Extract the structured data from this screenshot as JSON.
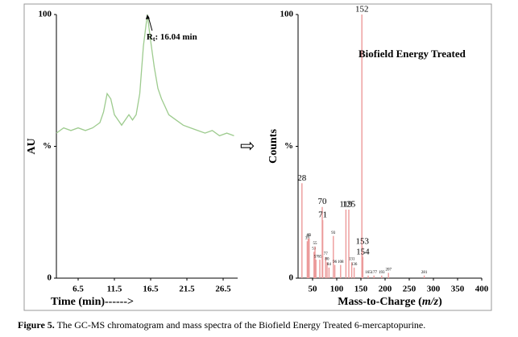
{
  "chart_data": [
    {
      "type": "line",
      "ylabel": "AU",
      "xlabel": "Time (min)------>",
      "color": "#9dcb8e",
      "annotation": [
        "R",
        "t",
        ": 16.04 min"
      ],
      "xlim": [
        3.5,
        28.5
      ],
      "xticks": [
        6.5,
        11.5,
        16.5,
        21.5,
        26.5
      ],
      "ylim": [
        0,
        100
      ],
      "yticks": [
        0,
        {
          "value": 50,
          "label": "%"
        },
        100
      ],
      "x": [
        3.5,
        4.5,
        5.5,
        6.5,
        7.5,
        8.5,
        9.5,
        10.0,
        10.5,
        11.0,
        11.5,
        12.0,
        12.5,
        13.0,
        13.5,
        14.0,
        14.5,
        15.0,
        15.5,
        16.04,
        16.5,
        17.0,
        17.5,
        18.0,
        18.5,
        19.0,
        20.0,
        21.0,
        22.0,
        23.0,
        24.0,
        25.0,
        26.0,
        27.0,
        28.0
      ],
      "values": [
        55,
        57,
        56,
        57,
        56,
        57,
        59,
        63,
        70,
        68,
        62,
        60,
        58,
        60,
        62,
        60,
        62,
        70,
        88,
        100,
        90,
        80,
        72,
        68,
        65,
        62,
        60,
        58,
        57,
        56,
        55,
        56,
        54,
        55,
        54
      ]
    },
    {
      "type": "spectrum",
      "ylabel": "Counts",
      "xlabel": [
        "Mass-to-Charge (",
        "m/z",
        ")"
      ],
      "color": "#ec9a9a",
      "annotation": "Biofield Energy Treated",
      "xlim": [
        20,
        400
      ],
      "xticks": [
        50,
        100,
        150,
        200,
        250,
        300,
        350,
        400
      ],
      "ylim": [
        0,
        100
      ],
      "yticks": [
        0,
        {
          "value": 50,
          "label": "%"
        },
        100
      ],
      "x": [
        28,
        39,
        41,
        43,
        53,
        55,
        57,
        65,
        70,
        71,
        77,
        80,
        84,
        93,
        96,
        108,
        119,
        125,
        131,
        136,
        152,
        153,
        154,
        165,
        177,
        193,
        207,
        281
      ],
      "values": [
        36,
        14,
        15,
        15,
        10,
        12,
        7,
        7,
        27,
        22,
        8,
        6,
        4,
        16,
        5,
        5,
        26,
        26,
        6,
        4,
        100,
        12,
        8,
        1,
        1,
        1,
        2,
        1
      ]
    }
  ],
  "caption": {
    "label": "Figure 5.",
    "text": " The GC-MS chromatogram and mass spectra of the Biofield Energy Treated 6-mercaptopurine."
  }
}
